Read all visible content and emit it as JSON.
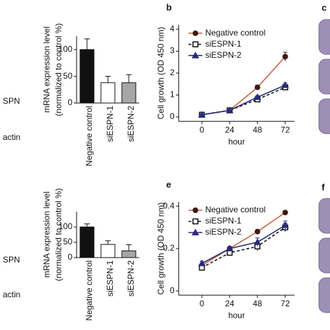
{
  "blot_labels": [
    "SPN",
    "actin",
    "SPN",
    "actin"
  ],
  "image_panels": [
    "c",
    "f"
  ],
  "chart_data": [
    {
      "type": "bar",
      "ylabel": [
        "mRNA expression level",
        "(normalized to control %)"
      ],
      "categories": [
        "Negative control",
        "siESPN-1",
        "siESPN-2"
      ],
      "values": [
        100,
        38,
        38
      ],
      "errors": [
        20,
        12,
        15
      ],
      "colors": [
        "#111111",
        "#ffffff",
        "#a6a6a6"
      ],
      "ylim": [
        0,
        125
      ],
      "yticks": [
        0,
        50,
        100
      ]
    },
    {
      "type": "line",
      "panel_label": "b",
      "ylabel": "Cell growth (OD 450 nm)",
      "xlabel": "hour",
      "x": [
        0,
        24,
        48,
        72
      ],
      "xlim": [
        -20,
        80
      ],
      "xticks": [
        0,
        24,
        48,
        72
      ],
      "ylim": [
        -0.2,
        4.2
      ],
      "yticks": [
        0,
        1,
        2,
        3,
        4
      ],
      "series": [
        {
          "name": "Negative control",
          "color": "#c8643c",
          "marker_color": "#3a1a14",
          "marker": "circle",
          "dash": false,
          "values": [
            0.1,
            0.3,
            1.35,
            2.75
          ],
          "errors": [
            0.05,
            0.05,
            0.1,
            0.2
          ]
        },
        {
          "name": "siESPN-1",
          "color": "#111111",
          "marker_color": "#111111",
          "marker": "square",
          "dash": true,
          "values": [
            0.1,
            0.3,
            0.8,
            1.35
          ],
          "errors": [
            0.03,
            0.05,
            0.08,
            0.1
          ]
        },
        {
          "name": "siESPN-2",
          "color": "#2a2a7a",
          "marker_color": "#2a2a7a",
          "marker": "triangle",
          "dash": false,
          "values": [
            0.1,
            0.3,
            0.9,
            1.45
          ],
          "errors": [
            0.03,
            0.05,
            0.08,
            0.1
          ]
        }
      ]
    },
    {
      "type": "bar",
      "ylabel": [
        "mRNA expression level",
        "(normalized to control %)"
      ],
      "categories": [
        "Negative control",
        "siESPN-1",
        "siESPN-2"
      ],
      "values": [
        100,
        43,
        22
      ],
      "errors": [
        10,
        12,
        20
      ],
      "colors": [
        "#111111",
        "#ffffff",
        "#a6a6a6"
      ],
      "ylim": [
        0,
        150
      ],
      "yticks": [
        0,
        50,
        100
      ]
    },
    {
      "type": "line",
      "panel_label": "e",
      "ylabel": "Cell growth (OD 450 nm)",
      "xlabel": "hour",
      "x": [
        0,
        24,
        48,
        72
      ],
      "xlim": [
        -20,
        80
      ],
      "xticks": [
        0,
        24,
        48,
        72
      ],
      "ylim": [
        -0.02,
        0.42
      ],
      "yticks": [
        0,
        0.2,
        0.4
      ],
      "series": [
        {
          "name": "Negative control",
          "color": "#c8643c",
          "marker_color": "#3a1a14",
          "marker": "circle",
          "dash": false,
          "values": [
            0.12,
            0.2,
            0.28,
            0.37
          ],
          "errors": [
            0.005,
            0.005,
            0.005,
            0.005
          ]
        },
        {
          "name": "siESPN-1",
          "color": "#111111",
          "marker_color": "#111111",
          "marker": "square",
          "dash": true,
          "values": [
            0.11,
            0.18,
            0.21,
            0.3
          ],
          "errors": [
            0.01,
            0.01,
            0.02,
            0.02
          ]
        },
        {
          "name": "siESPN-2",
          "color": "#2a2a7a",
          "marker_color": "#2a2a7a",
          "marker": "triangle",
          "dash": false,
          "values": [
            0.13,
            0.2,
            0.23,
            0.31
          ],
          "errors": [
            0.01,
            0.01,
            0.02,
            0.02
          ]
        }
      ]
    }
  ]
}
